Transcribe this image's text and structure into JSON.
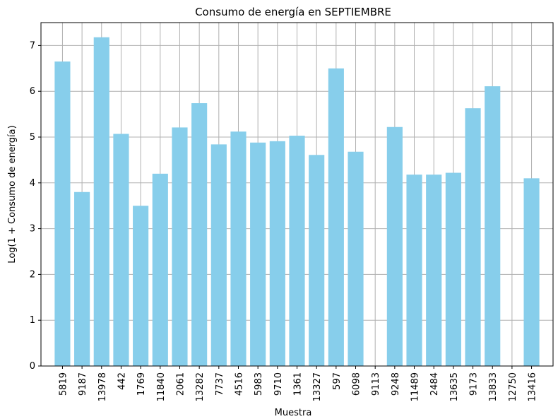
{
  "chart_data": {
    "type": "bar",
    "title": "Consumo de energía en SEPTIEMBRE",
    "xlabel": "Muestra",
    "ylabel": "Log(1 + Consumo de energía)",
    "categories": [
      "5819",
      "9187",
      "13978",
      "442",
      "1769",
      "11840",
      "2061",
      "13282",
      "7737",
      "4516",
      "5983",
      "9710",
      "1361",
      "13327",
      "597",
      "6098",
      "9113",
      "9248",
      "11489",
      "2484",
      "13635",
      "9173",
      "13833",
      "12750",
      "13416"
    ],
    "values": [
      6.65,
      3.8,
      7.18,
      5.07,
      3.5,
      4.2,
      5.21,
      5.74,
      4.84,
      5.12,
      4.88,
      4.91,
      5.03,
      4.61,
      6.5,
      4.68,
      0.0,
      5.22,
      4.18,
      4.18,
      4.22,
      5.63,
      6.11,
      0.0,
      4.1
    ],
    "ylim": [
      0,
      7.5
    ],
    "yticks": [
      0,
      1,
      2,
      3,
      4,
      5,
      6,
      7
    ],
    "grid": true,
    "bar_color": "#87ceeb",
    "grid_color": "#b0b0b0"
  }
}
